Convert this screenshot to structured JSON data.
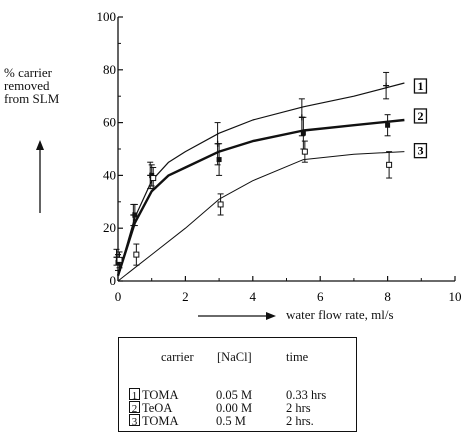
{
  "chart_data": {
    "type": "scatter",
    "ylabel": "% carrier\nremoved\nfrom SLM",
    "xlabel": "water flow rate, ml/s",
    "xlim": [
      0,
      10
    ],
    "ylim": [
      0,
      100
    ],
    "xticks": [
      "0",
      "2",
      "4",
      "6",
      "8",
      "10"
    ],
    "yticks": [
      "0",
      "20",
      "40",
      "60",
      "80",
      "100"
    ],
    "grid": false,
    "series": [
      {
        "name": "1",
        "marker": "plus",
        "x": [
          0,
          0.5,
          1,
          3,
          5.5,
          8
        ],
        "y": [
          9,
          25,
          40,
          52,
          62,
          74
        ],
        "err": [
          3,
          4,
          5,
          8,
          7,
          5
        ],
        "fit_x": [
          0,
          0.5,
          1,
          1.5,
          2,
          3,
          4,
          5.5,
          7,
          8.5
        ],
        "fit_y": [
          2,
          24,
          38,
          45,
          49,
          56,
          61,
          66,
          70,
          75
        ]
      },
      {
        "name": "2",
        "marker": "filled-square",
        "x": [
          0,
          0.5,
          1,
          3,
          5.5,
          8
        ],
        "y": [
          7,
          25,
          40,
          46,
          56,
          59
        ],
        "err": [
          3,
          4,
          4,
          6,
          6,
          4
        ],
        "fit_x": [
          0,
          0.5,
          1,
          1.5,
          2,
          3,
          4,
          5.5,
          7,
          8.5
        ],
        "fit_y": [
          2,
          22,
          34,
          40,
          43,
          49,
          53,
          57,
          59,
          61
        ]
      },
      {
        "name": "3",
        "marker": "open-square",
        "x": [
          0,
          0.5,
          1,
          3,
          5.5,
          8
        ],
        "y": [
          8,
          10,
          39,
          29,
          49,
          44
        ],
        "err": [
          3,
          4,
          4,
          4,
          4,
          5
        ],
        "fit_x": [
          0,
          0.5,
          1,
          2,
          3,
          4,
          5.5,
          7,
          8.5
        ],
        "fit_y": [
          0,
          5,
          10,
          20,
          31,
          38,
          46,
          48,
          49
        ]
      }
    ]
  },
  "legend": {
    "headers": [
      "carrier",
      "[NaCl]",
      "time"
    ],
    "rows": [
      {
        "num": "1",
        "carrier": "TOMA",
        "nacl": "0.05 M",
        "time": "0.33 hrs"
      },
      {
        "num": "2",
        "carrier": "TeOA",
        "nacl": "0.00 M",
        "time": "2 hrs"
      },
      {
        "num": "3",
        "carrier": "TOMA",
        "nacl": "0.5 M",
        "time": "2 hrs."
      }
    ]
  }
}
